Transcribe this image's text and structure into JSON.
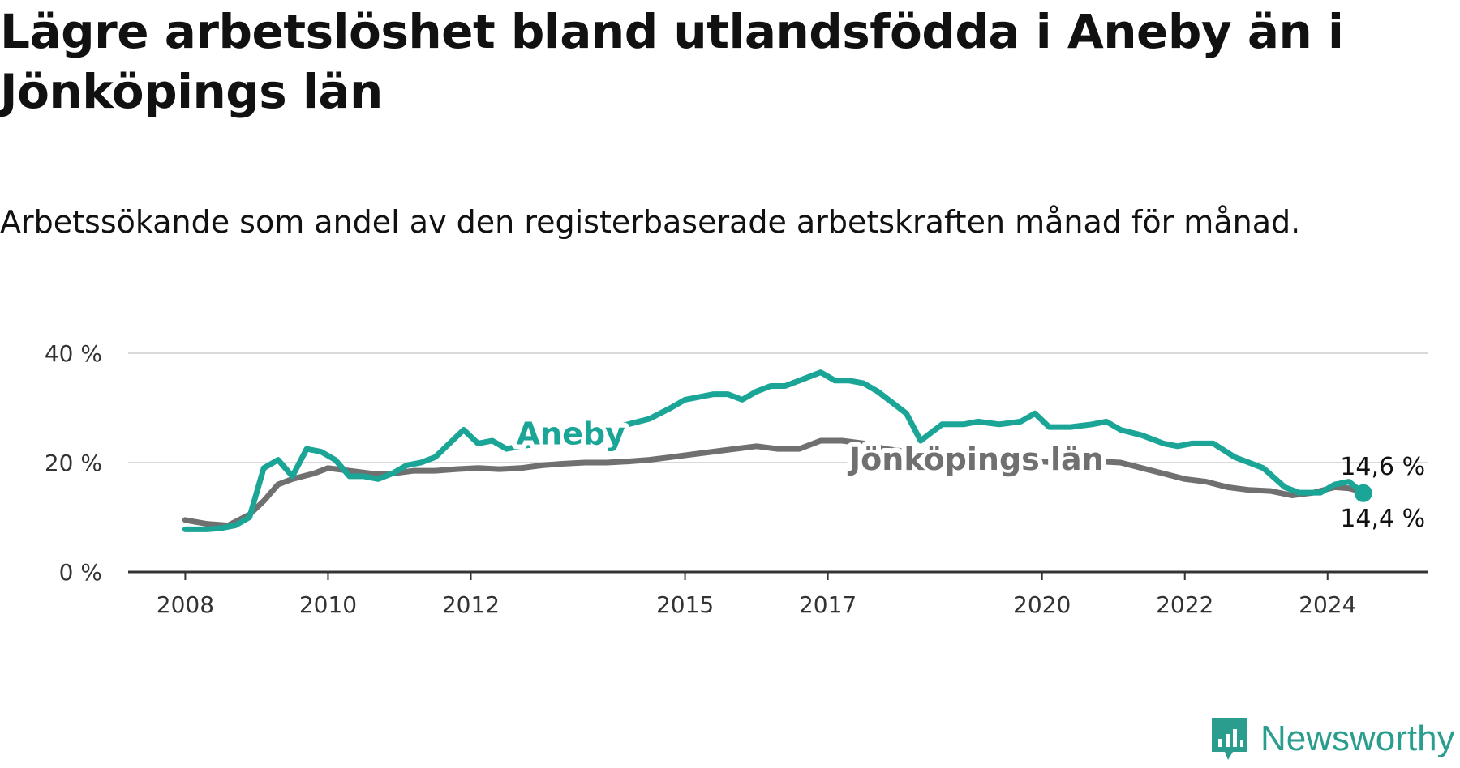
{
  "title": "Lägre arbetslöshet bland utlandsfödda i Aneby än i Jönköpings län",
  "subtitle": "Arbetssökande som andel av den registerbaserade arbetskraften månad för månad.",
  "brand": {
    "name": "Newsworthy",
    "icon": "newsworthy-logo-icon",
    "color": "#2a9d8f"
  },
  "chart_data": {
    "type": "line",
    "xlim": [
      2007.2,
      2025.4
    ],
    "ylim": [
      0,
      40
    ],
    "y_ticks": [
      {
        "value": 0,
        "label": "0 %"
      },
      {
        "value": 20,
        "label": "20 %"
      },
      {
        "value": 40,
        "label": "40 %"
      }
    ],
    "x_ticks": [
      {
        "value": 2008,
        "label": "2008"
      },
      {
        "value": 2010,
        "label": "2010"
      },
      {
        "value": 2012,
        "label": "2012"
      },
      {
        "value": 2015,
        "label": "2015"
      },
      {
        "value": 2017,
        "label": "2017"
      },
      {
        "value": 2020,
        "label": "2020"
      },
      {
        "value": 2022,
        "label": "2022"
      },
      {
        "value": 2024,
        "label": "2024"
      }
    ],
    "grid": true,
    "legend": "inline",
    "series": [
      {
        "name": "Aneby",
        "color": "#1aa596",
        "label_at": [
          2013.4,
          23.3
        ],
        "end_label": "14,4 %",
        "x": [
          2008.0,
          2008.3,
          2008.5,
          2008.7,
          2008.9,
          2009.1,
          2009.3,
          2009.5,
          2009.7,
          2009.9,
          2010.1,
          2010.3,
          2010.5,
          2010.7,
          2010.9,
          2011.1,
          2011.3,
          2011.5,
          2011.7,
          2011.9,
          2012.1,
          2012.3,
          2012.5,
          2012.7,
          2013.0,
          2013.3,
          2013.6,
          2013.9,
          2014.2,
          2014.5,
          2014.8,
          2015.0,
          2015.2,
          2015.4,
          2015.6,
          2015.8,
          2016.0,
          2016.2,
          2016.4,
          2016.6,
          2016.9,
          2017.1,
          2017.3,
          2017.5,
          2017.7,
          2017.9,
          2018.1,
          2018.3,
          2018.6,
          2018.9,
          2019.1,
          2019.4,
          2019.7,
          2019.9,
          2020.1,
          2020.4,
          2020.7,
          2020.9,
          2021.1,
          2021.4,
          2021.7,
          2021.9,
          2022.1,
          2022.4,
          2022.7,
          2022.9,
          2023.1,
          2023.4,
          2023.6,
          2023.9,
          2024.1,
          2024.3,
          2024.5
        ],
        "y": [
          7.8,
          7.8,
          8.0,
          8.5,
          10.0,
          19.0,
          20.5,
          17.5,
          22.5,
          22.0,
          20.5,
          17.5,
          17.5,
          17.0,
          18.0,
          19.5,
          20.0,
          21.0,
          23.5,
          26.0,
          23.5,
          24.0,
          22.5,
          23.0,
          23.5,
          24.5,
          25.5,
          26.0,
          27.0,
          28.0,
          30.0,
          31.5,
          32.0,
          32.5,
          32.5,
          31.5,
          33.0,
          34.0,
          34.0,
          35.0,
          36.5,
          35.0,
          35.0,
          34.5,
          33.0,
          31.0,
          29.0,
          24.0,
          27.0,
          27.0,
          27.5,
          27.0,
          27.5,
          29.0,
          26.5,
          26.5,
          27.0,
          27.5,
          26.0,
          25.0,
          23.5,
          23.0,
          23.5,
          23.5,
          21.0,
          20.0,
          19.0,
          15.5,
          14.5,
          14.5,
          16.0,
          16.5,
          14.4
        ]
      },
      {
        "name": "Jönköpings län",
        "color": "#707070",
        "label_at": [
          2017.3,
          18.7
        ],
        "end_label": "14,6 %",
        "x": [
          2008.0,
          2008.3,
          2008.6,
          2008.9,
          2009.1,
          2009.3,
          2009.5,
          2009.8,
          2010.0,
          2010.3,
          2010.6,
          2010.9,
          2011.2,
          2011.5,
          2011.8,
          2012.1,
          2012.4,
          2012.7,
          2013.0,
          2013.3,
          2013.6,
          2013.9,
          2014.2,
          2014.5,
          2014.8,
          2015.1,
          2015.4,
          2015.7,
          2016.0,
          2016.3,
          2016.6,
          2016.9,
          2017.2,
          2017.5,
          2017.8,
          2018.1,
          2018.4,
          2018.7,
          2019.0,
          2019.3,
          2019.6,
          2019.9,
          2020.2,
          2020.5,
          2020.8,
          2021.1,
          2021.4,
          2021.7,
          2022.0,
          2022.3,
          2022.6,
          2022.9,
          2023.2,
          2023.5,
          2023.8,
          2024.1,
          2024.3,
          2024.5
        ],
        "y": [
          9.5,
          8.8,
          8.5,
          10.5,
          13.0,
          16.0,
          17.0,
          18.0,
          19.0,
          18.5,
          18.0,
          18.0,
          18.5,
          18.5,
          18.8,
          19.0,
          18.8,
          19.0,
          19.5,
          19.8,
          20.0,
          20.0,
          20.2,
          20.5,
          21.0,
          21.5,
          22.0,
          22.5,
          23.0,
          22.5,
          22.5,
          24.0,
          24.0,
          23.5,
          22.5,
          22.0,
          21.5,
          21.0,
          21.0,
          20.5,
          20.5,
          20.3,
          20.0,
          20.0,
          20.2,
          20.0,
          19.0,
          18.0,
          17.0,
          16.5,
          15.5,
          15.0,
          14.8,
          14.0,
          14.5,
          15.5,
          15.3,
          14.6
        ]
      }
    ]
  }
}
